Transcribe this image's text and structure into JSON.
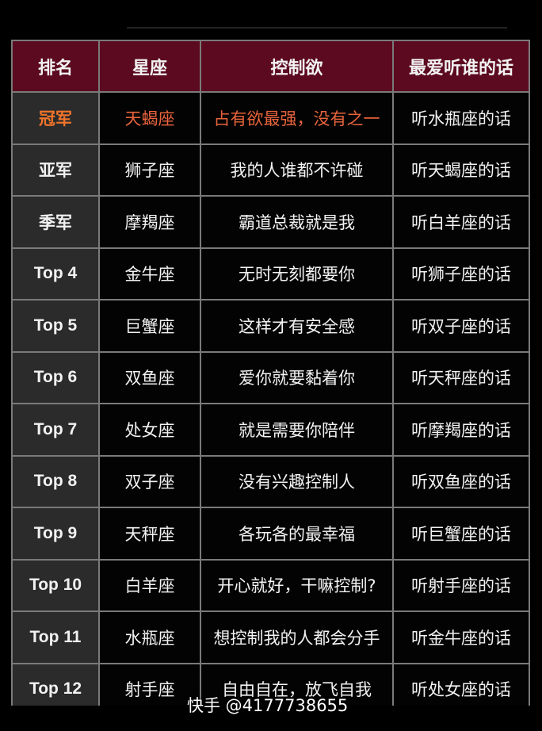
{
  "table": {
    "headers": [
      "排名",
      "星座",
      "控制欲",
      "最爱听谁的话"
    ],
    "rows": [
      [
        "冠军",
        "天蝎座",
        "占有欲最强，没有之一",
        "听水瓶座的话"
      ],
      [
        "亚军",
        "狮子座",
        "我的人谁都不许碰",
        "听天蝎座的话"
      ],
      [
        "季军",
        "摩羯座",
        "霸道总裁就是我",
        "听白羊座的话"
      ],
      [
        "Top 4",
        "金牛座",
        "无时无刻都要你",
        "听狮子座的话"
      ],
      [
        "Top 5",
        "巨蟹座",
        "这样才有安全感",
        "听双子座的话"
      ],
      [
        "Top 6",
        "双鱼座",
        "爱你就要黏着你",
        "听天秤座的话"
      ],
      [
        "Top 7",
        "处女座",
        "就是需要你陪伴",
        "听摩羯座的话"
      ],
      [
        "Top 8",
        "双子座",
        "没有兴趣控制人",
        "听双鱼座的话"
      ],
      [
        "Top 9",
        "天秤座",
        "各玩各的最幸福",
        "听巨蟹座的话"
      ],
      [
        "Top 10",
        "白羊座",
        "开心就好，干嘛控制?",
        "听射手座的话"
      ],
      [
        "Top 11",
        "水瓶座",
        "想控制我的人都会分手",
        "听金牛座的话"
      ],
      [
        "Top 12",
        "射手座",
        "自由自在，放飞自我",
        "听处女座的话"
      ]
    ]
  },
  "watermark": "快手 @4177738655",
  "colors": {
    "header_bg": "#5c0a20",
    "highlight": "#e8643c",
    "rank_bg": "#2b2b2b"
  }
}
